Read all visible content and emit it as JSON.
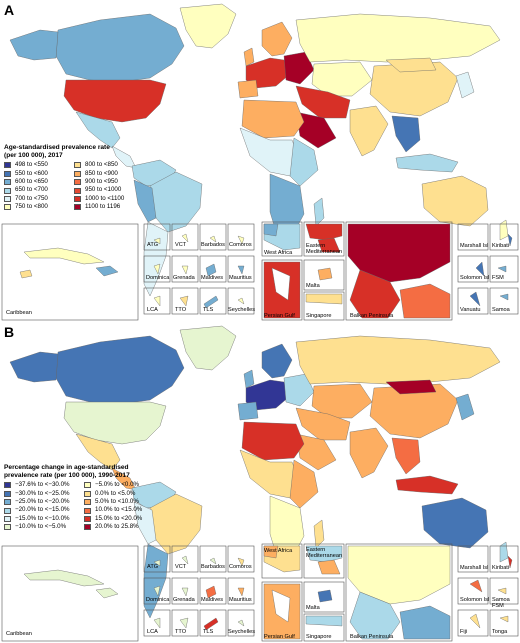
{
  "panel_a": {
    "label": "A",
    "legend_title_1": "Age-standardised prevalence rate",
    "legend_title_2": "(per 100 000), 2017",
    "legend": [
      {
        "text": "498  to  <550",
        "color": "#313695"
      },
      {
        "text": "550  to  <600",
        "color": "#4575b4"
      },
      {
        "text": "600  to  <650",
        "color": "#74add1"
      },
      {
        "text": "650  to  <700",
        "color": "#abd9e9"
      },
      {
        "text": "700  to  <750",
        "color": "#e0f3f8"
      },
      {
        "text": "750  to  <800",
        "color": "#ffffbf"
      },
      {
        "text": "800  to  <850",
        "color": "#fee090"
      },
      {
        "text": "850  to  <900",
        "color": "#fdae61"
      },
      {
        "text": "900  to  <950",
        "color": "#f46d43"
      },
      {
        "text": "950  to  <1000",
        "color": "#e34a33"
      },
      {
        "text": "1000  to  <1100",
        "color": "#d73027"
      },
      {
        "text": "1100  to  1196",
        "color": "#a50026"
      }
    ]
  },
  "panel_b": {
    "label": "B",
    "legend_title_1": "Percentage change in age-standardised",
    "legend_title_2": "prevalence rate (per 100 000), 1990-2017",
    "legend": [
      {
        "text": "−37.6%  to  <−30.0%",
        "color": "#313695"
      },
      {
        "text": "−30.0%  to  <−25.0%",
        "color": "#4575b4"
      },
      {
        "text": "−25.0%  to  <−20.0%",
        "color": "#74add1"
      },
      {
        "text": "−20.0%  to  <−15.0%",
        "color": "#abd9e9"
      },
      {
        "text": "−15.0%  to  <−10.0%",
        "color": "#e0f3f8"
      },
      {
        "text": "−10.0%  to  <−5.0%",
        "color": "#e6f5d0"
      },
      {
        "text": "−5.0%  to  <0.0%",
        "color": "#ffffbf"
      },
      {
        "text": "0.0%  to  <5.0%",
        "color": "#fee090"
      },
      {
        "text": "5.0%  to  <10.0%",
        "color": "#fdae61"
      },
      {
        "text": "10.0%  to  <15.0%",
        "color": "#f46d43"
      },
      {
        "text": "15.0%  to  <20.0%",
        "color": "#d73027"
      },
      {
        "text": "20.0%  to  25.8%",
        "color": "#a50026"
      }
    ]
  },
  "insets": {
    "caribbean": "Caribbean",
    "atg": "ATG",
    "vct": "VCT",
    "barbados": "Barbados",
    "comoros": "Comoros",
    "dominica": "Dominica",
    "grenada": "Grenada",
    "maldives": "Maldives",
    "mauritius": "Mauritius",
    "lca": "LCA",
    "tto": "TTO",
    "tls": "TLS",
    "seychelles": "Seychelles",
    "west_africa": "West Africa",
    "eastern_med_1": "Eastern",
    "eastern_med_2": "Mediterranean",
    "malta": "Malta",
    "persian_gulf": "Persian Gulf",
    "singapore": "Singapore",
    "balkan": "Balkan Peninsula",
    "marshall": "Marshall Isl",
    "kiribati": "Kiribati",
    "solomon": "Solomon Isl",
    "fsm": "FSM",
    "vanuatu": "Vanuatu",
    "samoa": "Samoa",
    "fiji": "Fiji",
    "tonga": "Tonga"
  }
}
